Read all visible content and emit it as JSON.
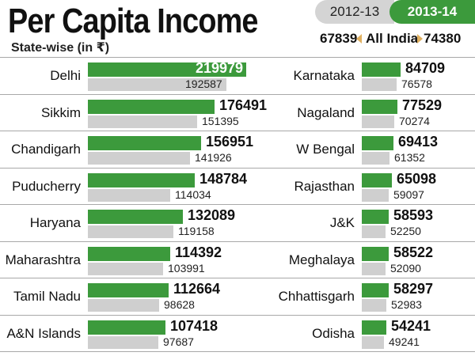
{
  "title": "Per Capita Income",
  "subtitle": "State-wise (in ₹)",
  "legend": {
    "year_old": "2012-13",
    "year_new": "2013-14",
    "all_india_label": "All India",
    "all_india_old": "67839",
    "all_india_new": "74380",
    "color_new": "#3c9a3c",
    "color_old": "#cfcfcf"
  },
  "chart_data": {
    "type": "bar",
    "series": [
      {
        "name": "2013-14",
        "color": "#3c9a3c"
      },
      {
        "name": "2012-13",
        "color": "#cfcfcf"
      }
    ],
    "left": [
      {
        "state": "Delhi",
        "y2013_14": 219979,
        "y2012_13": 192587
      },
      {
        "state": "Sikkim",
        "y2013_14": 176491,
        "y2012_13": 151395
      },
      {
        "state": "Chandigarh",
        "y2013_14": 156951,
        "y2012_13": 141926
      },
      {
        "state": "Puducherry",
        "y2013_14": 148784,
        "y2012_13": 114034
      },
      {
        "state": "Haryana",
        "y2013_14": 132089,
        "y2012_13": 119158
      },
      {
        "state": "Maharashtra",
        "y2013_14": 114392,
        "y2012_13": 103991
      },
      {
        "state": "Tamil Nadu",
        "y2013_14": 112664,
        "y2012_13": 98628
      },
      {
        "state": "A&N Islands",
        "y2013_14": 107418,
        "y2012_13": 97687
      }
    ],
    "right": [
      {
        "state": "Karnataka",
        "y2013_14": 84709,
        "y2012_13": 76578
      },
      {
        "state": "Nagaland",
        "y2013_14": 77529,
        "y2012_13": 70274
      },
      {
        "state": "W Bengal",
        "y2013_14": 69413,
        "y2012_13": 61352
      },
      {
        "state": "Rajasthan",
        "y2013_14": 65098,
        "y2012_13": 59097
      },
      {
        "state": "J&K",
        "y2013_14": 58593,
        "y2012_13": 52250
      },
      {
        "state": "Meghalaya",
        "y2013_14": 58522,
        "y2012_13": 52090
      },
      {
        "state": "Chhattisgarh",
        "y2013_14": 58297,
        "y2012_13": 52983
      },
      {
        "state": "Odisha",
        "y2013_14": 54241,
        "y2012_13": 49241
      }
    ]
  }
}
